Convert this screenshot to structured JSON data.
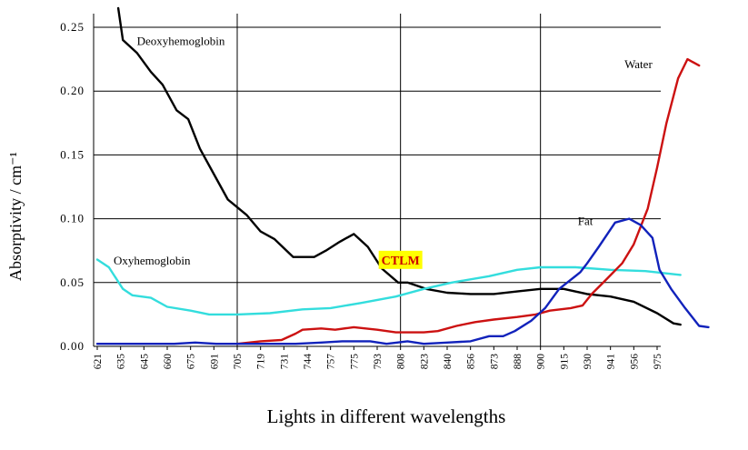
{
  "chart_data": {
    "type": "line",
    "xlabel": "Lights in different wavelengths",
    "ylabel": "Absorptivity / cm⁻¹",
    "ylim": [
      0,
      0.25
    ],
    "yticks": [
      "0.00",
      "0.05",
      "0.10",
      "0.15",
      "0.20",
      "0.25"
    ],
    "categories": [
      "621",
      "635",
      "645",
      "660",
      "675",
      "691",
      "705",
      "719",
      "731",
      "744",
      "757",
      "775",
      "793",
      "808",
      "823",
      "840",
      "856",
      "873",
      "888",
      "900",
      "915",
      "930",
      "941",
      "956",
      "975"
    ],
    "grid": "major gridlines at every 0.05 and at 705, 808, 900",
    "annotation": {
      "text": "CTLM",
      "x": "808",
      "y": 0.045,
      "color": "#cc0000",
      "background": "#ffff00"
    },
    "series": [
      {
        "name": "Deoxyhemoglobin",
        "color": "#000000",
        "points": [
          [
            0.9,
            0.265
          ],
          [
            1.1,
            0.24
          ],
          [
            1.7,
            0.23
          ],
          [
            2.3,
            0.215
          ],
          [
            2.8,
            0.205
          ],
          [
            3.4,
            0.185
          ],
          [
            3.9,
            0.178
          ],
          [
            4.4,
            0.155
          ],
          [
            5.0,
            0.135
          ],
          [
            5.6,
            0.115
          ],
          [
            6.4,
            0.103
          ],
          [
            7.0,
            0.09
          ],
          [
            7.6,
            0.084
          ],
          [
            8.4,
            0.07
          ],
          [
            9.3,
            0.07
          ],
          [
            9.8,
            0.075
          ],
          [
            10.4,
            0.082
          ],
          [
            11.0,
            0.088
          ],
          [
            11.6,
            0.078
          ],
          [
            12.2,
            0.061
          ],
          [
            12.9,
            0.05
          ],
          [
            13.3,
            0.05
          ],
          [
            14.1,
            0.045
          ],
          [
            15.0,
            0.042
          ],
          [
            16.0,
            0.041
          ],
          [
            17.0,
            0.041
          ],
          [
            18.0,
            0.043
          ],
          [
            19.0,
            0.045
          ],
          [
            20.0,
            0.045
          ],
          [
            21.0,
            0.041
          ],
          [
            22.0,
            0.039
          ],
          [
            23.0,
            0.035
          ],
          [
            24.0,
            0.026
          ],
          [
            24.7,
            0.018
          ],
          [
            25.0,
            0.017
          ]
        ]
      },
      {
        "name": "Oxyhemoglobin",
        "color": "#33dddd",
        "points": [
          [
            0,
            0.068
          ],
          [
            0.5,
            0.062
          ],
          [
            1.1,
            0.045
          ],
          [
            1.5,
            0.04
          ],
          [
            2.3,
            0.038
          ],
          [
            3.0,
            0.031
          ],
          [
            4.0,
            0.028
          ],
          [
            4.8,
            0.025
          ],
          [
            6.0,
            0.025
          ],
          [
            7.4,
            0.026
          ],
          [
            8.8,
            0.029
          ],
          [
            10.0,
            0.03
          ],
          [
            11.3,
            0.034
          ],
          [
            12.8,
            0.039
          ],
          [
            14.0,
            0.045
          ],
          [
            15.2,
            0.05
          ],
          [
            16.8,
            0.055
          ],
          [
            18.0,
            0.06
          ],
          [
            19.0,
            0.062
          ],
          [
            20.5,
            0.062
          ],
          [
            22.0,
            0.06
          ],
          [
            23.5,
            0.059
          ],
          [
            25.0,
            0.056
          ]
        ]
      },
      {
        "name": "Water",
        "color": "#cc1111",
        "points": [
          [
            6.0,
            0.002
          ],
          [
            7.0,
            0.004
          ],
          [
            7.9,
            0.005
          ],
          [
            8.5,
            0.01
          ],
          [
            8.8,
            0.013
          ],
          [
            9.6,
            0.014
          ],
          [
            10.2,
            0.013
          ],
          [
            11.0,
            0.015
          ],
          [
            12.0,
            0.013
          ],
          [
            12.8,
            0.011
          ],
          [
            14.0,
            0.011
          ],
          [
            14.6,
            0.012
          ],
          [
            15.4,
            0.016
          ],
          [
            16.2,
            0.019
          ],
          [
            17.0,
            0.021
          ],
          [
            18.0,
            0.023
          ],
          [
            18.8,
            0.025
          ],
          [
            19.4,
            0.028
          ],
          [
            20.3,
            0.03
          ],
          [
            20.8,
            0.032
          ],
          [
            21.2,
            0.041
          ],
          [
            21.8,
            0.052
          ],
          [
            22.5,
            0.065
          ],
          [
            23.0,
            0.08
          ],
          [
            23.6,
            0.108
          ],
          [
            24.0,
            0.14
          ],
          [
            24.4,
            0.175
          ],
          [
            24.9,
            0.21
          ],
          [
            25.3,
            0.225
          ],
          [
            25.8,
            0.22
          ]
        ]
      },
      {
        "name": "Fat",
        "color": "#1122bb",
        "points": [
          [
            0,
            0.002
          ],
          [
            1.5,
            0.002
          ],
          [
            3.3,
            0.002
          ],
          [
            4.2,
            0.003
          ],
          [
            5.1,
            0.002
          ],
          [
            6.0,
            0.002
          ],
          [
            7.4,
            0.002
          ],
          [
            8.5,
            0.002
          ],
          [
            9.6,
            0.003
          ],
          [
            10.5,
            0.004
          ],
          [
            11.7,
            0.004
          ],
          [
            12.4,
            0.002
          ],
          [
            13.3,
            0.004
          ],
          [
            14.0,
            0.002
          ],
          [
            15.0,
            0.003
          ],
          [
            16.0,
            0.004
          ],
          [
            16.8,
            0.008
          ],
          [
            17.4,
            0.008
          ],
          [
            17.9,
            0.012
          ],
          [
            18.6,
            0.02
          ],
          [
            19.2,
            0.03
          ],
          [
            19.8,
            0.045
          ],
          [
            20.7,
            0.058
          ],
          [
            21.0,
            0.065
          ],
          [
            21.5,
            0.078
          ],
          [
            22.2,
            0.097
          ],
          [
            22.8,
            0.1
          ],
          [
            23.3,
            0.095
          ],
          [
            23.8,
            0.085
          ],
          [
            24.1,
            0.06
          ],
          [
            24.6,
            0.045
          ],
          [
            25.2,
            0.03
          ],
          [
            25.8,
            0.016
          ],
          [
            26.2,
            0.015
          ]
        ]
      }
    ],
    "series_labels": [
      {
        "text": "Deoxyhemoglobin",
        "x": 1.7,
        "y": 0.236
      },
      {
        "text": "Oxyhemoglobin",
        "x": 0.7,
        "y": 0.064
      },
      {
        "text": "Water",
        "x": 22.6,
        "y": 0.218
      },
      {
        "text": "Fat",
        "x": 20.6,
        "y": 0.095
      }
    ]
  }
}
